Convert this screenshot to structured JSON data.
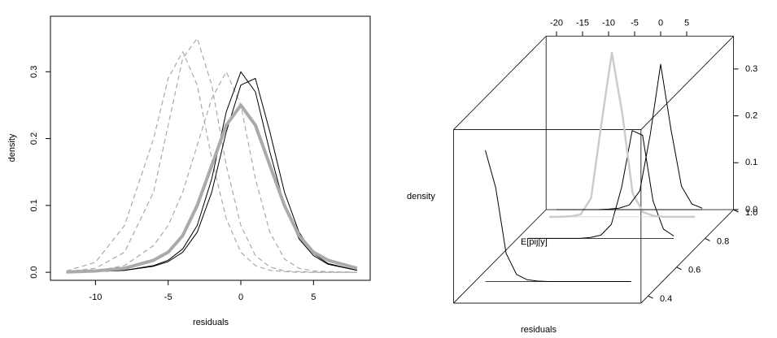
{
  "chart_data": [
    {
      "type": "line",
      "xlabel": "residuals",
      "ylabel": "density",
      "x": [
        -12,
        -10,
        -8,
        -6,
        -5,
        -4,
        -3,
        -2,
        -1,
        0,
        1,
        2,
        3,
        4,
        5,
        6,
        8
      ],
      "xlim": [
        -13.1,
        8.9
      ],
      "ylim": [
        -0.012,
        0.383
      ],
      "xticks": [
        -10,
        -5,
        0,
        5
      ],
      "yticks": [
        {
          "value": 0,
          "label": "0.0"
        },
        0.1,
        0.2,
        0.3
      ],
      "series": [
        {
          "color": "#aaaaaa",
          "linestyle": "dashed",
          "linewidth": 1.2,
          "values": [
            0.001,
            0.006,
            0.03,
            0.12,
            0.22,
            0.32,
            0.35,
            0.28,
            0.16,
            0.07,
            0.025,
            0.008,
            0.002,
            0.001,
            0,
            0,
            0
          ]
        },
        {
          "color": "#aaaaaa",
          "linestyle": "dashed",
          "linewidth": 1.2,
          "values": [
            0.002,
            0.015,
            0.07,
            0.2,
            0.29,
            0.33,
            0.28,
            0.17,
            0.08,
            0.03,
            0.01,
            0.003,
            0.001,
            0,
            0,
            0,
            0
          ]
        },
        {
          "color": "#aaaaaa",
          "linestyle": "dashed",
          "linewidth": 1.2,
          "values": [
            0,
            0.002,
            0.01,
            0.04,
            0.07,
            0.12,
            0.19,
            0.26,
            0.3,
            0.25,
            0.14,
            0.06,
            0.02,
            0.006,
            0.002,
            0.001,
            0
          ]
        },
        {
          "color": "#000000",
          "linestyle": "solid",
          "linewidth": 1,
          "values": [
            0,
            0.001,
            0.003,
            0.01,
            0.018,
            0.035,
            0.07,
            0.14,
            0.24,
            0.3,
            0.27,
            0.18,
            0.1,
            0.05,
            0.025,
            0.012,
            0.003
          ]
        },
        {
          "color": "#000000",
          "linestyle": "solid",
          "linewidth": 1,
          "values": [
            0,
            0.001,
            0.003,
            0.009,
            0.016,
            0.03,
            0.06,
            0.12,
            0.21,
            0.28,
            0.29,
            0.21,
            0.12,
            0.06,
            0.028,
            0.013,
            0.003
          ]
        },
        {
          "color": "#aaaaaa",
          "linestyle": "solid",
          "linewidth": 4,
          "values": [
            0.0005,
            0.002,
            0.006,
            0.018,
            0.03,
            0.055,
            0.1,
            0.16,
            0.22,
            0.25,
            0.22,
            0.16,
            0.1,
            0.055,
            0.03,
            0.018,
            0.006
          ]
        }
      ]
    },
    {
      "type": "line3d",
      "xlabel": "residuals",
      "ylabel": "density",
      "zlabel": "E[pij|y]",
      "x": [
        -20,
        -18,
        -16,
        -14,
        -12,
        -10,
        -8,
        -6,
        -4,
        -2,
        0,
        2,
        4,
        6,
        8
      ],
      "xlim": [
        -22,
        14
      ],
      "ylim": [
        0,
        0.37
      ],
      "zlim": [
        0.35,
        1.0
      ],
      "xticks": [
        -20,
        -15,
        -10,
        -5,
        0,
        5
      ],
      "yticks": [
        {
          "value": 0,
          "label": "0.0"
        },
        0.1,
        0.2,
        0.3
      ],
      "zticks": [
        0.4,
        0.6,
        0.8,
        {
          "value": 1,
          "label": "1.0"
        }
      ],
      "series": [
        {
          "color": "#000000",
          "linewidth": 1,
          "e": 0.5,
          "values": [
            0.28,
            0.2,
            0.06,
            0.015,
            0.004,
            0.001,
            0,
            0,
            0,
            0,
            0,
            0,
            0,
            0,
            0
          ]
        },
        {
          "color": "#000000",
          "linewidth": 1,
          "e": 0.8,
          "values": [
            0,
            0,
            0,
            0,
            0,
            0,
            0.002,
            0.007,
            0.03,
            0.11,
            0.23,
            0.22,
            0.08,
            0.02,
            0.005
          ]
        },
        {
          "color": "#cccccc",
          "linewidth": 2.5,
          "e": 0.95,
          "values": [
            0,
            0,
            0.001,
            0.005,
            0.04,
            0.2,
            0.35,
            0.22,
            0.05,
            0.01,
            0.002,
            0,
            0,
            0,
            0
          ]
        },
        {
          "color": "#000000",
          "linewidth": 1,
          "e": 1,
          "values": [
            0,
            0,
            0,
            0,
            0,
            0.001,
            0.003,
            0.01,
            0.04,
            0.16,
            0.31,
            0.17,
            0.05,
            0.012,
            0.003
          ]
        }
      ]
    }
  ]
}
